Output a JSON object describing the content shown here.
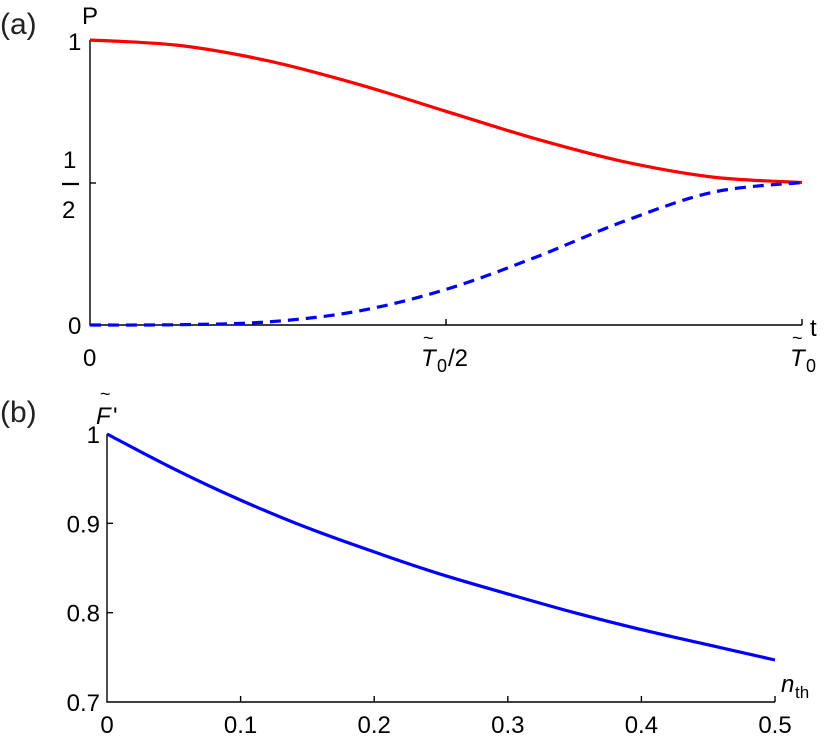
{
  "panels": {
    "a": {
      "label": "(a)",
      "ylabel": "P",
      "xlabel": "t",
      "yticks": {
        "one": "1",
        "half_num": "1",
        "half_den": "2",
        "zero": "0"
      },
      "xticks": {
        "zero": "0",
        "half_main": "T",
        "half_sub": "0",
        "half_suffix": "/2",
        "full_main": "T",
        "full_sub": "0"
      },
      "colors": {
        "solid": "#ff0000",
        "dashed": "#0000ff"
      }
    },
    "b": {
      "label": "(b)",
      "ylabel_main": "F",
      "ylabel_prime": "'",
      "xlabel_main": "n",
      "xlabel_sub": "th",
      "yticks": [
        "1",
        "0.9",
        "0.8",
        "0.7"
      ],
      "xticks": [
        "0",
        "0.1",
        "0.2",
        "0.3",
        "0.4",
        "0.5"
      ],
      "colors": {
        "line": "#0000ff"
      }
    }
  },
  "chart_data": [
    {
      "type": "line",
      "title": "(a)",
      "xlabel": "t",
      "ylabel": "P",
      "x_tick_labels": [
        "0",
        "T̃0/2",
        "T̃0"
      ],
      "y_tick_labels": [
        "0",
        "1/2",
        "1"
      ],
      "xlim": [
        0,
        1
      ],
      "ylim": [
        0,
        1
      ],
      "grid": false,
      "legend": null,
      "x": [
        0,
        0.125,
        0.25,
        0.375,
        0.5,
        0.625,
        0.75,
        0.875,
        1.0
      ],
      "series": [
        {
          "name": "solid red",
          "style": "solid",
          "color": "#ff0000",
          "values": [
            1.0,
            0.981,
            0.927,
            0.846,
            0.75,
            0.654,
            0.573,
            0.519,
            0.5
          ]
        },
        {
          "name": "dashed blue",
          "style": "dashed",
          "color": "#0000ff",
          "values": [
            0.0,
            0.001,
            0.011,
            0.048,
            0.125,
            0.237,
            0.364,
            0.466,
            0.5
          ]
        }
      ]
    },
    {
      "type": "line",
      "title": "(b)",
      "xlabel": "n_th",
      "ylabel": "F̃'",
      "xlim": [
        0,
        0.5
      ],
      "ylim": [
        0.7,
        1.0
      ],
      "grid": false,
      "legend": null,
      "x": [
        0,
        0.05,
        0.1,
        0.15,
        0.2,
        0.25,
        0.3,
        0.35,
        0.4,
        0.45,
        0.5
      ],
      "series": [
        {
          "name": "F'",
          "style": "solid",
          "color": "#0000ff",
          "values": [
            1.0,
            0.961,
            0.926,
            0.895,
            0.868,
            0.843,
            0.821,
            0.8,
            0.781,
            0.764,
            0.747
          ]
        }
      ]
    }
  ]
}
